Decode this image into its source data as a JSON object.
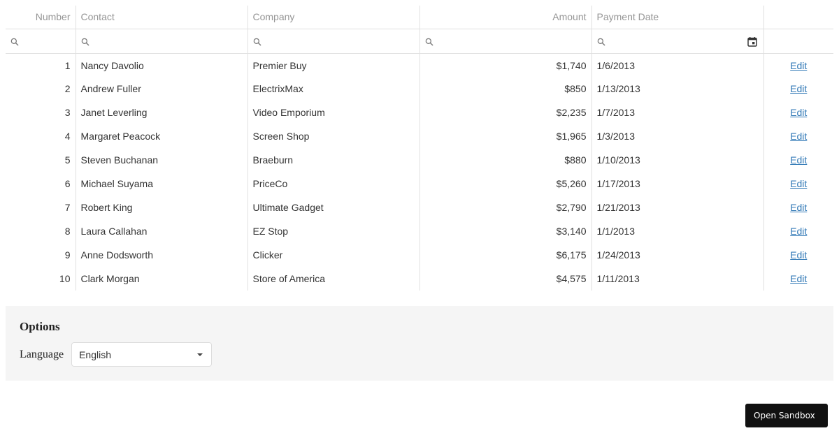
{
  "columns": {
    "number": "Number",
    "contact": "Contact",
    "company": "Company",
    "amount": "Amount",
    "payment_date": "Payment Date"
  },
  "edit_label": "Edit",
  "rows": [
    {
      "number": "1",
      "contact": "Nancy Davolio",
      "company": "Premier Buy",
      "amount": "$1,740",
      "date": "1/6/2013"
    },
    {
      "number": "2",
      "contact": "Andrew Fuller",
      "company": "ElectrixMax",
      "amount": "$850",
      "date": "1/13/2013"
    },
    {
      "number": "3",
      "contact": "Janet Leverling",
      "company": "Video Emporium",
      "amount": "$2,235",
      "date": "1/7/2013"
    },
    {
      "number": "4",
      "contact": "Margaret Peacock",
      "company": "Screen Shop",
      "amount": "$1,965",
      "date": "1/3/2013"
    },
    {
      "number": "5",
      "contact": "Steven Buchanan",
      "company": "Braeburn",
      "amount": "$880",
      "date": "1/10/2013"
    },
    {
      "number": "6",
      "contact": "Michael Suyama",
      "company": "PriceCo",
      "amount": "$5,260",
      "date": "1/17/2013"
    },
    {
      "number": "7",
      "contact": "Robert King",
      "company": "Ultimate Gadget",
      "amount": "$2,790",
      "date": "1/21/2013"
    },
    {
      "number": "8",
      "contact": "Laura Callahan",
      "company": "EZ Stop",
      "amount": "$3,140",
      "date": "1/1/2013"
    },
    {
      "number": "9",
      "contact": "Anne Dodsworth",
      "company": "Clicker",
      "amount": "$6,175",
      "date": "1/24/2013"
    },
    {
      "number": "10",
      "contact": "Clark Morgan",
      "company": "Store of America",
      "amount": "$4,575",
      "date": "1/11/2013"
    }
  ],
  "options": {
    "title": "Options",
    "language_label": "Language",
    "language_value": "English"
  },
  "sandbox_button": "Open Sandbox",
  "icons": {
    "filter": "search-icon",
    "date_filter": "calendar-icon",
    "dropdown": "chevron-down-icon"
  }
}
